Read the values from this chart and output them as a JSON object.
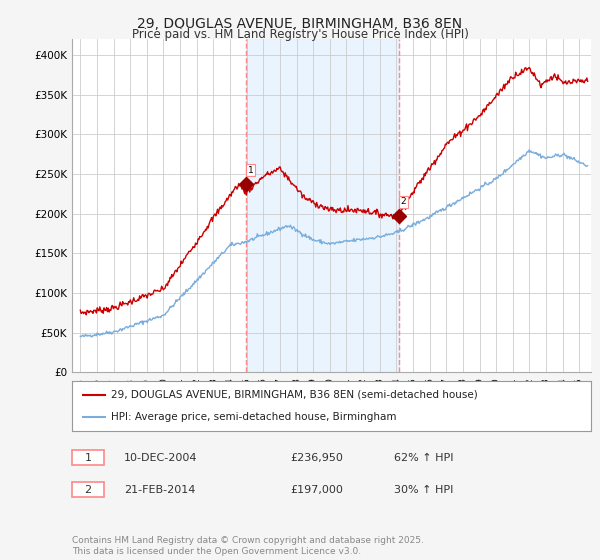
{
  "title_line1": "29, DOUGLAS AVENUE, BIRMINGHAM, B36 8EN",
  "title_line2": "Price paid vs. HM Land Registry's House Price Index (HPI)",
  "ylabel_ticks": [
    "£0",
    "£50K",
    "£100K",
    "£150K",
    "£200K",
    "£250K",
    "£300K",
    "£350K",
    "£400K"
  ],
  "ytick_values": [
    0,
    50000,
    100000,
    150000,
    200000,
    250000,
    300000,
    350000,
    400000
  ],
  "ylim": [
    0,
    420000
  ],
  "xlim_start": 1994.5,
  "xlim_end": 2025.7,
  "xtick_years": [
    1995,
    1996,
    1997,
    1998,
    1999,
    2000,
    2001,
    2002,
    2003,
    2004,
    2005,
    2006,
    2007,
    2008,
    2009,
    2010,
    2011,
    2012,
    2013,
    2014,
    2015,
    2016,
    2017,
    2018,
    2019,
    2020,
    2021,
    2022,
    2023,
    2024,
    2025
  ],
  "red_color": "#cc0000",
  "blue_color": "#7aaddb",
  "shade_color": "#ddeeff",
  "vline_color": "#ff8888",
  "marker_color": "#990000",
  "sale1_x": 2004.94,
  "sale1_y": 236950,
  "sale1_label": "1",
  "sale2_x": 2014.13,
  "sale2_y": 197000,
  "sale2_label": "2",
  "legend_line1": "29, DOUGLAS AVENUE, BIRMINGHAM, B36 8EN (semi-detached house)",
  "legend_line2": "HPI: Average price, semi-detached house, Birmingham",
  "info1_num": "1",
  "info1_date": "10-DEC-2004",
  "info1_price": "£236,950",
  "info1_hpi": "62% ↑ HPI",
  "info2_num": "2",
  "info2_date": "21-FEB-2014",
  "info2_price": "£197,000",
  "info2_hpi": "30% ↑ HPI",
  "footnote": "Contains HM Land Registry data © Crown copyright and database right 2025.\nThis data is licensed under the Open Government Licence v3.0.",
  "bg_color": "#f5f5f5",
  "plot_bg": "#ffffff"
}
